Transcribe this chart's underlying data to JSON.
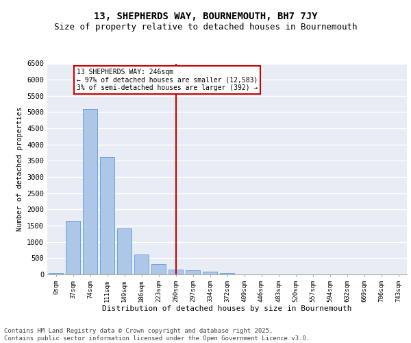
{
  "title": "13, SHEPHERDS WAY, BOURNEMOUTH, BH7 7JY",
  "subtitle": "Size of property relative to detached houses in Bournemouth",
  "xlabel": "Distribution of detached houses by size in Bournemouth",
  "ylabel": "Number of detached properties",
  "categories": [
    "0sqm",
    "37sqm",
    "74sqm",
    "111sqm",
    "149sqm",
    "186sqm",
    "223sqm",
    "260sqm",
    "297sqm",
    "334sqm",
    "372sqm",
    "409sqm",
    "446sqm",
    "483sqm",
    "520sqm",
    "557sqm",
    "594sqm",
    "632sqm",
    "669sqm",
    "706sqm",
    "743sqm"
  ],
  "values": [
    50,
    1650,
    5100,
    3620,
    1420,
    610,
    310,
    155,
    120,
    90,
    40,
    10,
    5,
    3,
    2,
    1,
    1,
    0,
    0,
    0,
    0
  ],
  "bar_color": "#aec6e8",
  "bar_edge_color": "#5b9bd5",
  "vline_x": 7,
  "vline_color": "#cc0000",
  "annotation_text": "13 SHEPHERDS WAY: 246sqm\n← 97% of detached houses are smaller (12,583)\n3% of semi-detached houses are larger (392) →",
  "annotation_box_color": "#ffffff",
  "annotation_box_edge": "#cc0000",
  "ylim": [
    0,
    6500
  ],
  "yticks": [
    0,
    500,
    1000,
    1500,
    2000,
    2500,
    3000,
    3500,
    4000,
    4500,
    5000,
    5500,
    6000,
    6500
  ],
  "bg_color": "#e8edf5",
  "grid_color": "#ffffff",
  "title_fontsize": 10,
  "subtitle_fontsize": 9,
  "footer_text": "Contains HM Land Registry data © Crown copyright and database right 2025.\nContains public sector information licensed under the Open Government Licence v3.0.",
  "footer_fontsize": 6.5
}
